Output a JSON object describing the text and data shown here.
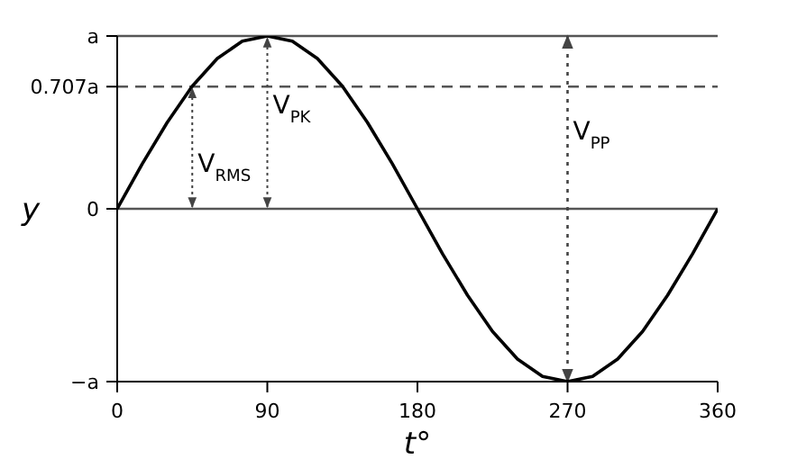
{
  "chart_data": {
    "type": "line",
    "xlabel": "t°",
    "ylabel": "y",
    "x": [
      0,
      15,
      30,
      45,
      60,
      75,
      90,
      105,
      120,
      135,
      150,
      165,
      180,
      195,
      210,
      225,
      240,
      255,
      270,
      285,
      300,
      315,
      330,
      345,
      360
    ],
    "series": [
      {
        "color": "#000000",
        "values": [
          0,
          0.26,
          0.5,
          0.71,
          0.87,
          0.97,
          1,
          0.97,
          0.87,
          0.71,
          0.5,
          0.26,
          0,
          -0.26,
          -0.5,
          -0.71,
          -0.87,
          -0.97,
          -1,
          -0.97,
          -0.87,
          -0.71,
          -0.5,
          -0.26,
          0
        ]
      }
    ],
    "xlim": [
      0,
      360
    ],
    "xticks": [
      0,
      90,
      180,
      270,
      360
    ],
    "ylim": [
      -1,
      1
    ],
    "yticks": [
      {
        "value": -1,
        "label": "−a"
      },
      0,
      {
        "value": 0.707,
        "label": "0.707a"
      },
      {
        "value": 1,
        "label": "a"
      }
    ],
    "ref_lines": [
      {
        "axis": "y",
        "value": 1,
        "color": "#555555",
        "line_style": "solid"
      },
      {
        "axis": "y",
        "value": 0.707,
        "color": "#555555",
        "line_style": "dashed"
      },
      {
        "axis": "y",
        "value": 0,
        "color": "#555555",
        "line_style": "solid"
      },
      {
        "axis": "x",
        "value": 270,
        "color": "#444444",
        "line_style": "dotted",
        "label": "V$_{PP}$"
      }
    ],
    "annotations": [
      {
        "text": "V$_{RMS}$",
        "x": 45,
        "y": 0.707
      },
      {
        "text": "V$_{PK}$",
        "x": 90,
        "y": 1
      }
    ],
    "marker": "none",
    "line_style": "solid"
  }
}
